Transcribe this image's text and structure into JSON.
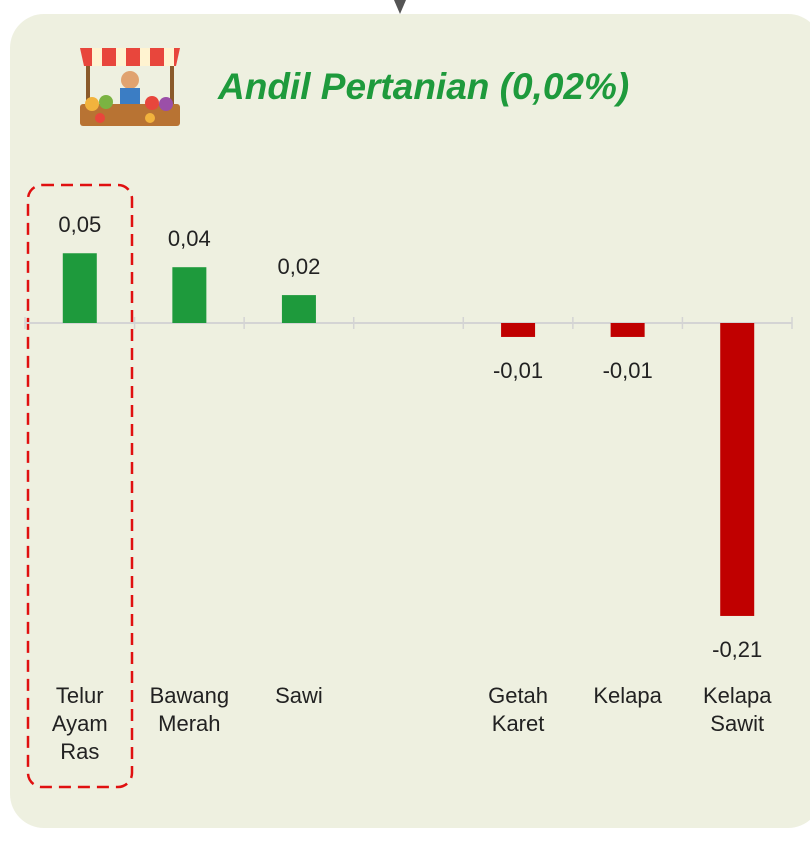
{
  "chart_data": {
    "type": "bar",
    "title": "Andil Pertanian (0,02%)",
    "categories": [
      "Telur Ayam Ras",
      "Bawang Merah",
      "Sawi",
      null,
      "Getah Karet",
      "Kelapa",
      "Kelapa Sawit"
    ],
    "values": [
      0.05,
      0.04,
      0.02,
      null,
      -0.01,
      -0.01,
      -0.21
    ],
    "value_labels": [
      "0,05",
      "0,04",
      "0,02",
      null,
      "-0,01",
      "-0,01",
      "-0,21"
    ],
    "positive_color": "#1e9a3c",
    "negative_color": "#c00000"
  }
}
